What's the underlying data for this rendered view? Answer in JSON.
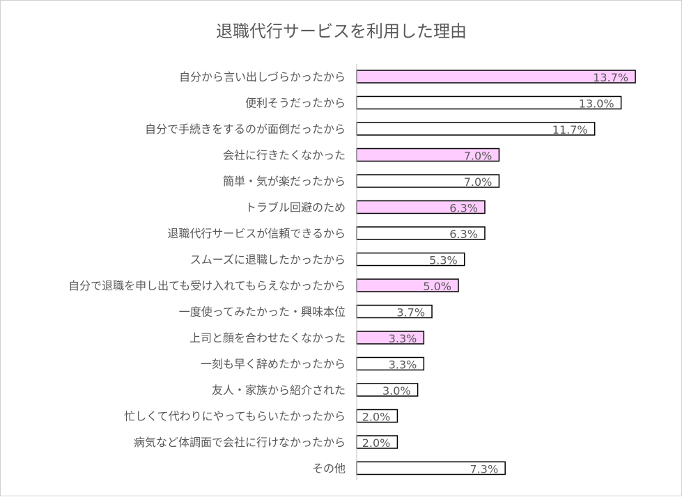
{
  "chart_data": {
    "type": "bar",
    "orientation": "horizontal",
    "title": "退職代行サービスを利用した理由",
    "categories": [
      "自分から言い出しづらかったから",
      "便利そうだったから",
      "自分で手続きをするのが面倒だったから",
      "会社に行きたくなかった",
      "簡単・気が楽だったから",
      "トラブル回避のため",
      "退職代行サービスが信頼できるから",
      "スムーズに退職したかったから",
      "自分で退職を申し出ても受け入れてもらえなかったから",
      "一度使ってみたかった・興味本位",
      "上司と顔を合わせたくなかった",
      "一刻も早く辞めたかったから",
      "友人・家族から紹介された",
      "忙しくて代わりにやってもらいたかったから",
      "病気など体調面で会社に行けなかったから",
      "その他"
    ],
    "values": [
      13.7,
      13.0,
      11.7,
      7.0,
      7.0,
      6.3,
      6.3,
      5.3,
      5.0,
      3.7,
      3.3,
      3.3,
      3.0,
      2.0,
      2.0,
      7.3
    ],
    "value_labels": [
      "13.7%",
      "13.0%",
      "11.7%",
      "7.0%",
      "7.0%",
      "6.3%",
      "6.3%",
      "5.3%",
      "5.0%",
      "3.7%",
      "3.3%",
      "3.3%",
      "3.0%",
      "2.0%",
      "2.0%",
      "7.3%"
    ],
    "highlighted": [
      true,
      false,
      false,
      true,
      false,
      true,
      false,
      false,
      true,
      false,
      true,
      false,
      false,
      false,
      false,
      false
    ],
    "xlim": [
      0,
      14.5
    ],
    "grid": false,
    "legend": "none",
    "colors": {
      "highlight_fill": "#ffccff",
      "normal_fill": "#ffffff",
      "bar_border": "#000000",
      "axis": "#bfbfbf",
      "text": "#595959"
    }
  }
}
